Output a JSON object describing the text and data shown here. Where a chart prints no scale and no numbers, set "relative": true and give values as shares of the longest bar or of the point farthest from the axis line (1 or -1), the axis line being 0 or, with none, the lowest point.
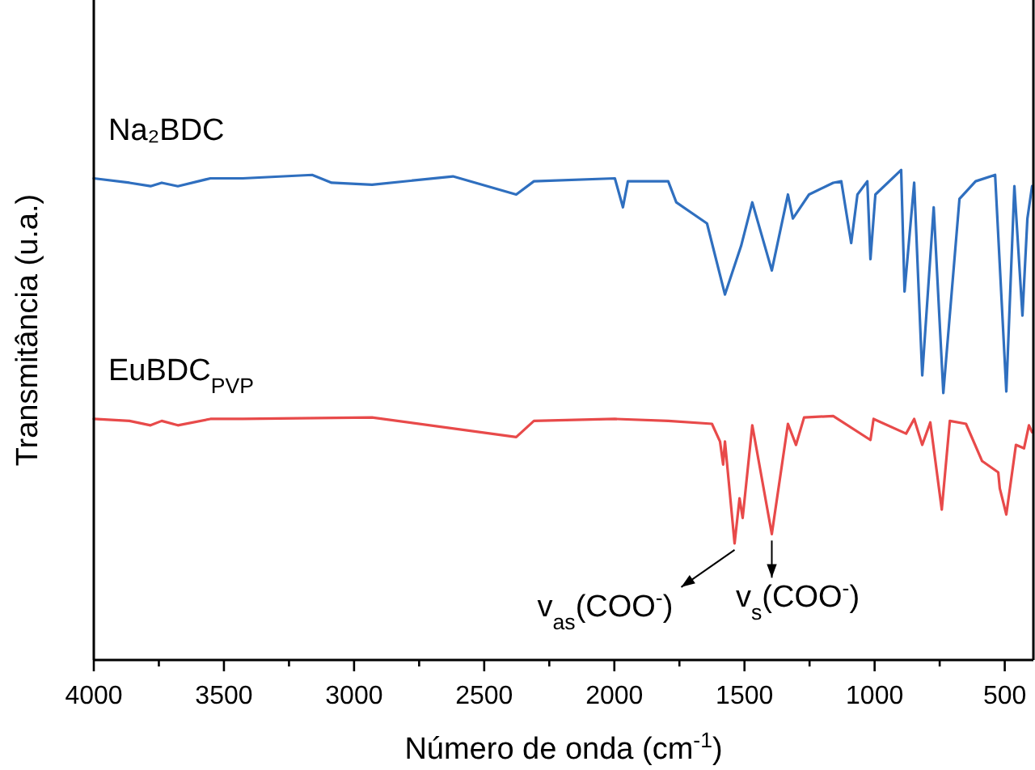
{
  "chart_data": {
    "type": "line",
    "relative": true,
    "xlabel": "Número de onda (cm$^{-1}$)",
    "ylabel": "Transmitância (u.a.)",
    "xlim": [
      4000,
      390
    ],
    "xticks": [
      4000,
      {
        "value": 3750,
        "label": null
      },
      3500,
      {
        "value": 3250,
        "label": null
      },
      3000,
      {
        "value": 2750,
        "label": null
      },
      2500,
      {
        "value": 2250,
        "label": null
      },
      2000,
      {
        "value": 1750,
        "label": null
      },
      1500,
      {
        "value": 1250,
        "label": null
      },
      1000,
      {
        "value": 750,
        "label": null
      },
      500
    ],
    "tick_labels": "x",
    "grid": false,
    "marker": "none",
    "line_style": "solid",
    "series": [
      {
        "name": "Na₂BDC",
        "color": "#2f6fbf",
        "x": [
          4000,
          3863,
          3782,
          3739,
          3677,
          3552,
          3428,
          3161,
          3086,
          2931,
          2620,
          2377,
          2309,
          1998,
          1967,
          1948,
          1793,
          1762,
          1644,
          1575,
          1513,
          1470,
          1395,
          1333,
          1314,
          1252,
          1159,
          1128,
          1090,
          1066,
          1028,
          1016,
          997,
          898,
          885,
          848,
          817,
          773,
          736,
          674,
          612,
          537,
          494,
          463,
          432,
          413,
          395
        ],
        "values": [
          0.983,
          0.974,
          0.967,
          0.974,
          0.967,
          0.983,
          0.983,
          0.99,
          0.974,
          0.97,
          0.987,
          0.95,
          0.977,
          0.983,
          0.924,
          0.977,
          0.977,
          0.934,
          0.891,
          0.746,
          0.845,
          0.934,
          0.795,
          0.95,
          0.901,
          0.95,
          0.974,
          0.977,
          0.851,
          0.95,
          0.977,
          0.818,
          0.95,
          1,
          0.752,
          0.974,
          0.581,
          0.924,
          0.545,
          0.941,
          0.977,
          0.99,
          0.548,
          0.967,
          0.703,
          0.901,
          0.967
        ]
      },
      {
        "name": "EuBDC$_{PVP}$",
        "color": "#e84a4a",
        "x": [
          4000,
          3863,
          3782,
          3739,
          3677,
          3552,
          3428,
          2931,
          2377,
          2309,
          1998,
          1793,
          1625,
          1594,
          1582,
          1575,
          1538,
          1519,
          1507,
          1470,
          1395,
          1333,
          1302,
          1271,
          1159,
          1016,
          1004,
          879,
          848,
          817,
          786,
          742,
          711,
          649,
          587,
          525,
          519,
          494,
          457,
          426,
          407,
          395
        ],
        "values": [
          0.492,
          0.488,
          0.479,
          0.488,
          0.479,
          0.492,
          0.492,
          0.495,
          0.455,
          0.488,
          0.492,
          0.488,
          0.482,
          0.446,
          0.399,
          0.446,
          0.238,
          0.33,
          0.29,
          0.479,
          0.257,
          0.482,
          0.439,
          0.495,
          0.498,
          0.449,
          0.492,
          0.462,
          0.492,
          0.439,
          0.485,
          0.307,
          0.488,
          0.482,
          0.406,
          0.383,
          0.35,
          0.297,
          0.439,
          0.432,
          0.479,
          0.465
        ]
      }
    ],
    "annotations": [
      {
        "text": "v$_{as}$(COO$^{-}$)",
        "x": 1538,
        "y": 0.238
      },
      {
        "text": "v$_{s}$(COO$^{-}$)",
        "x": 1395,
        "y": 0.257
      }
    ]
  }
}
